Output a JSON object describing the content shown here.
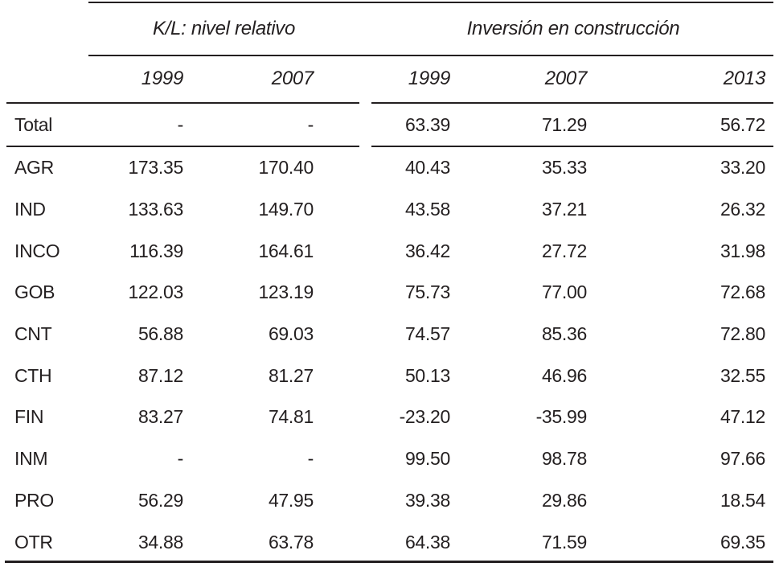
{
  "table": {
    "col_groups": [
      {
        "label": "K/L: nivel relativo",
        "years": [
          "1999",
          "2007"
        ]
      },
      {
        "label": "Inversión en construcción",
        "years": [
          "1999",
          "2007",
          "2013"
        ]
      }
    ],
    "rows": [
      {
        "label": "Total",
        "values": [
          "-",
          "-",
          "63.39",
          "71.29",
          "56.72"
        ]
      },
      {
        "label": "AGR",
        "values": [
          "173.35",
          "170.40",
          "40.43",
          "35.33",
          "33.20"
        ]
      },
      {
        "label": "IND",
        "values": [
          "133.63",
          "149.70",
          "43.58",
          "37.21",
          "26.32"
        ]
      },
      {
        "label": "INCO",
        "values": [
          "116.39",
          "164.61",
          "36.42",
          "27.72",
          "31.98"
        ]
      },
      {
        "label": "GOB",
        "values": [
          "122.03",
          "123.19",
          "75.73",
          "77.00",
          "72.68"
        ]
      },
      {
        "label": "CNT",
        "values": [
          "56.88",
          "69.03",
          "74.57",
          "85.36",
          "72.80"
        ]
      },
      {
        "label": "CTH",
        "values": [
          "87.12",
          "81.27",
          "50.13",
          "46.96",
          "32.55"
        ]
      },
      {
        "label": "FIN",
        "values": [
          "83.27",
          "74.81",
          "-23.20",
          "-35.99",
          "47.12"
        ]
      },
      {
        "label": "INM",
        "values": [
          "-",
          "-",
          "99.50",
          "98.78",
          "97.66"
        ]
      },
      {
        "label": "PRO",
        "values": [
          "56.29",
          "47.95",
          "39.38",
          "29.86",
          "18.54"
        ]
      },
      {
        "label": "OTR",
        "values": [
          "34.88",
          "63.78",
          "64.38",
          "71.59",
          "69.35"
        ]
      }
    ],
    "colors": {
      "ink": "#231f20",
      "background": "#ffffff"
    }
  },
  "chart_data": {
    "type": "table",
    "title": "",
    "column_groups": [
      "K/L: nivel relativo",
      "Inversión en construcción"
    ],
    "columns": [
      "",
      "K/L 1999",
      "K/L 2007",
      "Inv. 1999",
      "Inv. 2007",
      "Inv. 2013"
    ],
    "rows": [
      [
        "Total",
        null,
        null,
        63.39,
        71.29,
        56.72
      ],
      [
        "AGR",
        173.35,
        170.4,
        40.43,
        35.33,
        33.2
      ],
      [
        "IND",
        133.63,
        149.7,
        43.58,
        37.21,
        26.32
      ],
      [
        "INCO",
        116.39,
        164.61,
        36.42,
        27.72,
        31.98
      ],
      [
        "GOB",
        122.03,
        123.19,
        75.73,
        77.0,
        72.68
      ],
      [
        "CNT",
        56.88,
        69.03,
        74.57,
        85.36,
        72.8
      ],
      [
        "CTH",
        87.12,
        81.27,
        50.13,
        46.96,
        32.55
      ],
      [
        "FIN",
        83.27,
        74.81,
        -23.2,
        -35.99,
        47.12
      ],
      [
        "INM",
        null,
        null,
        99.5,
        98.78,
        97.66
      ],
      [
        "PRO",
        56.29,
        47.95,
        39.38,
        29.86,
        18.54
      ],
      [
        "OTR",
        34.88,
        63.78,
        64.38,
        71.59,
        69.35
      ]
    ]
  }
}
